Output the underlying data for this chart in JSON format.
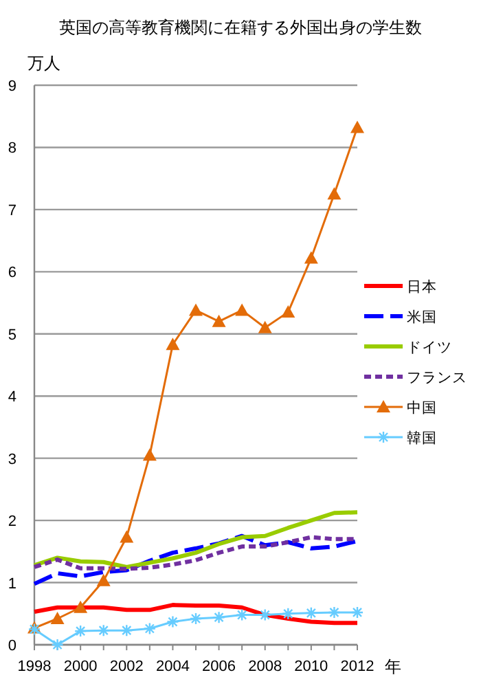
{
  "chart_data": {
    "type": "line",
    "title": "英国の高等教育機関に在籍する外国出身の学生数",
    "ylabel": "万人",
    "xlabel": "年",
    "x": [
      1998,
      1999,
      2000,
      2001,
      2002,
      2003,
      2004,
      2005,
      2006,
      2007,
      2008,
      2009,
      2010,
      2011,
      2012
    ],
    "xlim": [
      1998,
      2012
    ],
    "xticks": [
      1998,
      {
        "value": 1999,
        "label": null
      },
      2000,
      {
        "value": 2001,
        "label": null
      },
      2002,
      {
        "value": 2003,
        "label": null
      },
      2004,
      {
        "value": 2005,
        "label": null
      },
      2006,
      {
        "value": 2007,
        "label": null
      },
      2008,
      {
        "value": 2009,
        "label": null
      },
      2010,
      {
        "value": 2011,
        "label": null
      },
      2012
    ],
    "ylim": [
      0,
      9
    ],
    "yticks": [
      0,
      1,
      2,
      3,
      4,
      5,
      6,
      7,
      8,
      9
    ],
    "grid": "y",
    "legend": "right",
    "series": [
      {
        "name": "日本",
        "color": "#ff0000",
        "line_style": "solid",
        "marker": "none",
        "values": [
          0.53,
          0.6,
          0.6,
          0.6,
          0.56,
          0.56,
          0.64,
          0.63,
          0.63,
          0.6,
          0.48,
          0.42,
          0.37,
          0.35,
          0.35
        ]
      },
      {
        "name": "米国",
        "color": "#0000ff",
        "line_style": "dashed",
        "marker": "none",
        "values": [
          0.98,
          1.15,
          1.1,
          1.17,
          1.2,
          1.35,
          1.48,
          1.55,
          1.63,
          1.75,
          1.6,
          1.65,
          1.55,
          1.58,
          1.67
        ]
      },
      {
        "name": "ドイツ",
        "color": "#99cc00",
        "line_style": "solid",
        "marker": "none",
        "values": [
          1.28,
          1.4,
          1.34,
          1.33,
          1.25,
          1.32,
          1.39,
          1.48,
          1.62,
          1.73,
          1.75,
          1.88,
          2.0,
          2.12,
          2.13
        ]
      },
      {
        "name": "フランス",
        "color": "#7030a0",
        "line_style": "dotted",
        "marker": "none",
        "values": [
          1.25,
          1.37,
          1.23,
          1.23,
          1.22,
          1.24,
          1.29,
          1.36,
          1.48,
          1.58,
          1.58,
          1.65,
          1.73,
          1.7,
          1.7
        ]
      },
      {
        "name": "中国",
        "color": "#e36c09",
        "line_style": "solid",
        "marker": "triangle",
        "values": [
          0.27,
          0.42,
          0.6,
          1.03,
          1.73,
          3.05,
          4.83,
          5.38,
          5.2,
          5.38,
          5.1,
          5.35,
          6.22,
          7.25,
          8.32
        ]
      },
      {
        "name": "韓国",
        "color": "#66ccff",
        "line_style": "solid",
        "marker": "cross",
        "values": [
          0.25,
          0.0,
          0.22,
          0.23,
          0.23,
          0.26,
          0.37,
          0.42,
          0.44,
          0.48,
          0.48,
          0.5,
          0.51,
          0.52,
          0.52
        ]
      }
    ]
  }
}
